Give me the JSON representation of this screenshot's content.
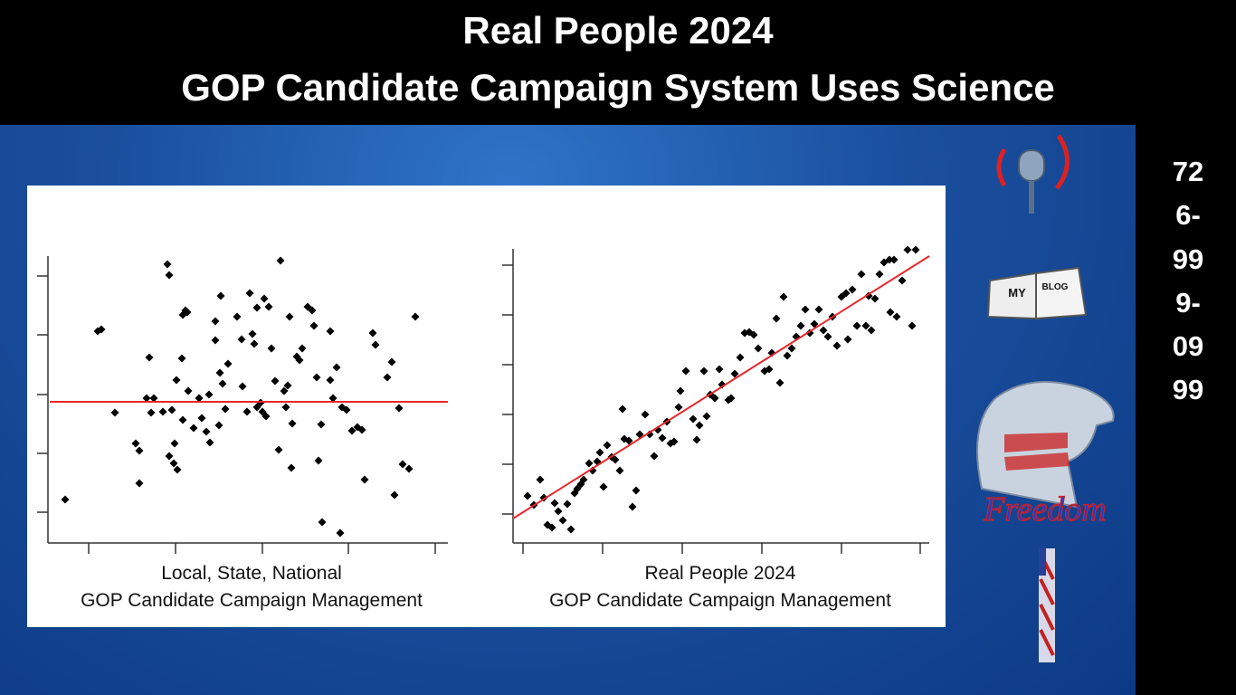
{
  "header": {
    "title": [
      "Real People 2024",
      "GOP Candidate Campaign System Uses Science"
    ]
  },
  "phone": "726-999-0999",
  "icons": {
    "blog": [
      "MY",
      "BLOG"
    ],
    "freedom": "Freedom"
  },
  "chart_data": [
    {
      "type": "scatter",
      "caption": [
        "Local, State, National",
        "GOP Candidate Campaign Management"
      ],
      "color": "#000000",
      "x": [
        19,
        55,
        59,
        74,
        97,
        101,
        101,
        109,
        112,
        114,
        117,
        127,
        132,
        134,
        137,
        134,
        139,
        143,
        140,
        142,
        148,
        149,
        152,
        154,
        155,
        149,
        161,
        167,
        170,
        175,
        179,
        178,
        185,
        185,
        189,
        190,
        193,
        191,
        196,
        199,
        209,
        215,
        214,
        220,
        223,
        226,
        228,
        231,
        231,
        235,
        237,
        239,
        241,
        244,
        247,
        251,
        257,
        255,
        261,
        265,
        263,
        267,
        269,
        270,
        275,
        278,
        281,
        287,
        292,
        294,
        297,
        302,
        303,
        299,
        312,
        312,
        315,
        319,
        323,
        325,
        330,
        336,
        342,
        347,
        350,
        359,
        362,
        375,
        380,
        383,
        388,
        392,
        399,
        406
      ],
      "y": [
        48,
        234,
        236,
        144,
        110,
        102,
        66,
        160,
        205,
        144,
        160,
        145,
        308,
        296,
        147,
        96,
        88,
        81,
        110,
        180,
        204,
        252,
        257,
        255,
        168,
        136,
        127,
        160,
        138,
        123,
        111,
        164,
        224,
        245,
        130,
        188,
        176,
        273,
        148,
        198,
        250,
        173,
        225,
        145,
        276,
        231,
        220,
        260,
        150,
        155,
        145,
        270,
        140,
        261,
        215,
        179,
        312,
        103,
        168,
        174,
        150,
        250,
        83,
        132,
        206,
        202,
        215,
        261,
        257,
        240,
        183,
        131,
        23,
        91,
        234,
        180,
        160,
        194,
        11,
        150,
        147,
        124,
        128,
        125,
        70,
        232,
        219,
        183,
        200,
        53,
        149,
        87,
        82,
        250
      ],
      "fit_line": {
        "x": [
          2,
          442
        ],
        "y": [
          156,
          156
        ],
        "color": "#e8262a"
      },
      "xlim": [
        0,
        442
      ],
      "ylim": [
        0,
        317
      ],
      "xticks": [
        45,
        141,
        237,
        332,
        428
      ],
      "yticks": [
        34,
        99,
        164,
        230,
        295
      ]
    },
    {
      "type": "scatter",
      "caption": [
        "Real People 2024",
        "GOP Candidate Campaign Management"
      ],
      "color": "#000000",
      "x": [
        16,
        23,
        30,
        34,
        38,
        43,
        46,
        50,
        55,
        60,
        64,
        68,
        71,
        75,
        78,
        84,
        88,
        93,
        96,
        100,
        104,
        109,
        113,
        118,
        121,
        123,
        128,
        132,
        136,
        140,
        146,
        151,
        156,
        160,
        165,
        170,
        174,
        178,
        183,
        185,
        191,
        199,
        203,
        206,
        211,
        214,
        218,
        223,
        228,
        231,
        238,
        241,
        245,
        251,
        256,
        261,
        266,
        271,
        278,
        283,
        286,
        291,
        295,
        299,
        303,
        308,
        313,
        318,
        323,
        328,
        333,
        338,
        343,
        348,
        353,
        358,
        363,
        368,
        370,
        375,
        380,
        385,
        390,
        393,
        396,
        400,
        405,
        410,
        416,
        421,
        417,
        424,
        430,
        436,
        441,
        445
      ],
      "y": [
        52,
        42,
        70,
        50,
        20,
        17,
        44,
        35,
        25,
        43,
        15,
        55,
        60,
        65,
        70,
        88,
        80,
        90,
        100,
        62,
        108,
        95,
        92,
        80,
        148,
        115,
        113,
        40,
        58,
        120,
        142,
        120,
        96,
        125,
        116,
        134,
        110,
        112,
        150,
        168,
        190,
        137,
        114,
        130,
        190,
        140,
        164,
        160,
        192,
        175,
        158,
        160,
        187,
        205,
        232,
        233,
        230,
        215,
        190,
        192,
        210,
        248,
        177,
        272,
        207,
        215,
        228,
        240,
        258,
        232,
        242,
        258,
        235,
        228,
        250,
        218,
        272,
        276,
        225,
        280,
        240,
        297,
        240,
        273,
        235,
        270,
        297,
        310,
        313,
        313,
        255,
        250,
        290,
        324,
        240,
        324
      ],
      "fit_line": {
        "x": [
          0,
          460
        ],
        "y": [
          27,
          317
        ],
        "color": "#e8262a"
      },
      "xlim": [
        0,
        460
      ],
      "ylim": [
        0,
        325
      ],
      "xticks": [
        11,
        99,
        187,
        275,
        363,
        450
      ],
      "yticks": [
        32,
        87,
        142,
        197,
        252,
        307
      ]
    }
  ]
}
